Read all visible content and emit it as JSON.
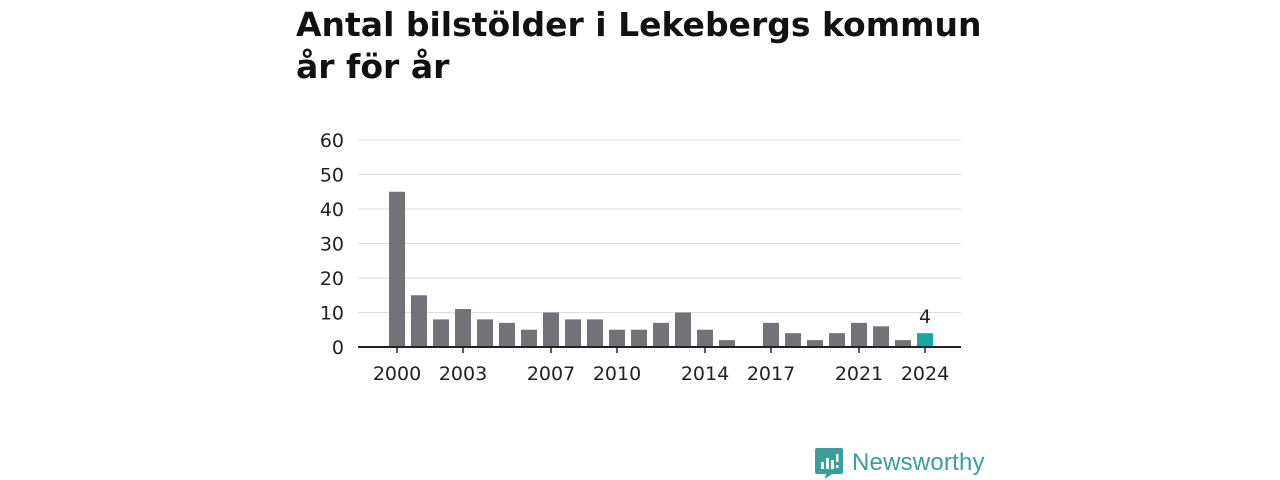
{
  "title": "Antal bilstölder i Lekebergs kommun år för år",
  "brand": {
    "name": "Newsworthy"
  },
  "colors": {
    "bar": "#737278",
    "highlight": "#1aa89f",
    "grid": "#dddddd",
    "axis": "#222222",
    "brand": "#3a9e99"
  },
  "chart_data": {
    "type": "bar",
    "categories": [
      "2000",
      "2001",
      "2002",
      "2003",
      "2004",
      "2005",
      "2006",
      "2007",
      "2008",
      "2009",
      "2010",
      "2011",
      "2012",
      "2013",
      "2014",
      "2015",
      "2016",
      "2017",
      "2018",
      "2019",
      "2020",
      "2021",
      "2022",
      "2023",
      "2024"
    ],
    "values": [
      45,
      15,
      8,
      11,
      8,
      7,
      5,
      10,
      8,
      8,
      5,
      5,
      7,
      10,
      5,
      2,
      0,
      7,
      4,
      2,
      4,
      7,
      6,
      2,
      4
    ],
    "x_tick_labels": [
      "2000",
      "2003",
      "2007",
      "2010",
      "2014",
      "2017",
      "2021",
      "2024"
    ],
    "y_ticks": [
      0,
      10,
      20,
      30,
      40,
      50,
      60
    ],
    "ylim": [
      0,
      60
    ],
    "highlight": {
      "category": "2024",
      "label": "4"
    },
    "grid": true,
    "xlabel": "",
    "ylabel": ""
  }
}
